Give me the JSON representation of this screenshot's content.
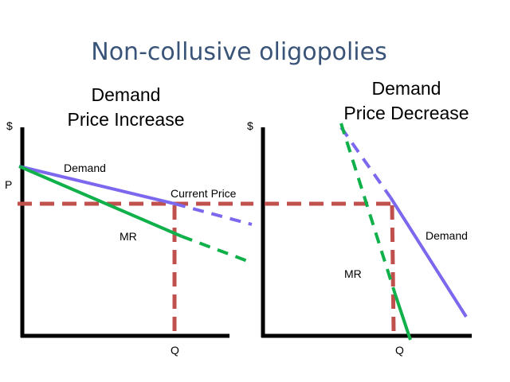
{
  "title": "Non-collusive oligopolies",
  "left_panel": {
    "heading_line1": "Demand",
    "heading_line2": "Price Increase",
    "y_axis_label": "$",
    "x_axis_label": "Q",
    "price_label": "P",
    "demand_label": "Demand",
    "mr_label": "MR",
    "current_price_label": "Current Price"
  },
  "right_panel": {
    "heading_line1": "Demand",
    "heading_line2": "Price Decrease",
    "y_axis_label": "$",
    "x_axis_label": "Q",
    "demand_label": "Demand",
    "mr_label": "MR"
  },
  "colors": {
    "title": "#3a5478",
    "demand": "#7b68ee",
    "mr": "#10b04a",
    "reference": "#c0504d",
    "axis": "#000000"
  }
}
